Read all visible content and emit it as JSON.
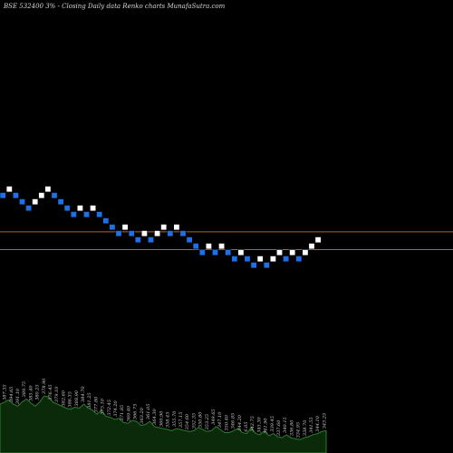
{
  "chart_data": {
    "type": "renko",
    "title": "BSE 532400  3% -  Closing Daily data  Renko  charts MunafaSutra.com",
    "colors": {
      "background": "#000000",
      "up_brick": "#ffffff",
      "down_brick": "#1e6fe8",
      "reference_line": "#b8651a",
      "volume_area": "#0a2a0a",
      "volume_line": "#2f7a2f"
    },
    "bricks": [
      {
        "dir": "down",
        "level": 0
      },
      {
        "dir": "up",
        "level": 1
      },
      {
        "dir": "down",
        "level": 0
      },
      {
        "dir": "down",
        "level": -1
      },
      {
        "dir": "down",
        "level": -2
      },
      {
        "dir": "up",
        "level": -1
      },
      {
        "dir": "up",
        "level": 0
      },
      {
        "dir": "up",
        "level": 1
      },
      {
        "dir": "down",
        "level": 0
      },
      {
        "dir": "down",
        "level": -1
      },
      {
        "dir": "down",
        "level": -2
      },
      {
        "dir": "down",
        "level": -3
      },
      {
        "dir": "up",
        "level": -2
      },
      {
        "dir": "down",
        "level": -3
      },
      {
        "dir": "up",
        "level": -2
      },
      {
        "dir": "down",
        "level": -3
      },
      {
        "dir": "down",
        "level": -4
      },
      {
        "dir": "down",
        "level": -5
      },
      {
        "dir": "down",
        "level": -6
      },
      {
        "dir": "up",
        "level": -5
      },
      {
        "dir": "down",
        "level": -6
      },
      {
        "dir": "down",
        "level": -7
      },
      {
        "dir": "up",
        "level": -6
      },
      {
        "dir": "down",
        "level": -7
      },
      {
        "dir": "up",
        "level": -6
      },
      {
        "dir": "up",
        "level": -5
      },
      {
        "dir": "down",
        "level": -6
      },
      {
        "dir": "up",
        "level": -5
      },
      {
        "dir": "down",
        "level": -6
      },
      {
        "dir": "down",
        "level": -7
      },
      {
        "dir": "down",
        "level": -8
      },
      {
        "dir": "down",
        "level": -9
      },
      {
        "dir": "up",
        "level": -8
      },
      {
        "dir": "down",
        "level": -9
      },
      {
        "dir": "up",
        "level": -8
      },
      {
        "dir": "down",
        "level": -9
      },
      {
        "dir": "down",
        "level": -10
      },
      {
        "dir": "up",
        "level": -9
      },
      {
        "dir": "down",
        "level": -10
      },
      {
        "dir": "down",
        "level": -11
      },
      {
        "dir": "up",
        "level": -10
      },
      {
        "dir": "down",
        "level": -11
      },
      {
        "dir": "up",
        "level": -10
      },
      {
        "dir": "up",
        "level": -9
      },
      {
        "dir": "down",
        "level": -10
      },
      {
        "dir": "up",
        "level": -9
      },
      {
        "dir": "down",
        "level": -10
      },
      {
        "dir": "up",
        "level": -9
      },
      {
        "dir": "up",
        "level": -8
      },
      {
        "dir": "up",
        "level": -7
      }
    ],
    "reference_lines": [
      -5.7,
      -8.5
    ],
    "volume": [
      48,
      50,
      52,
      48,
      46,
      50,
      53,
      49,
      46,
      50,
      56,
      55,
      50,
      48,
      46,
      44,
      43,
      45,
      44,
      48,
      44,
      42,
      38,
      42,
      36,
      35,
      33,
      34,
      30,
      29,
      32,
      31,
      27,
      28,
      31,
      26,
      25,
      24,
      23,
      22,
      24,
      23,
      22,
      21,
      22,
      25,
      23,
      21,
      22,
      26,
      23,
      20,
      20,
      22,
      24,
      20,
      19,
      25,
      19,
      18,
      22,
      17,
      19,
      16,
      15,
      18,
      15,
      14,
      13,
      15,
      16,
      18,
      19,
      21,
      22
    ],
    "volume_labels": [
      "387.35",
      "394.65",
      "391.10",
      "389.75",
      "385.40",
      "380.25",
      "378.90",
      "376.45",
      "379.10",
      "382.60",
      "386.35",
      "388.90",
      "384.70",
      "381.25",
      "377.80",
      "375.10",
      "372.45",
      "374.20",
      "371.85",
      "369.40",
      "366.75",
      "363.20",
      "361.05",
      "364.30",
      "360.90",
      "358.45",
      "355.70",
      "357.15",
      "354.60",
      "352.35",
      "350.80",
      "353.25",
      "349.65",
      "347.10",
      "350.40",
      "346.85",
      "344.20",
      "6.05",
      "342.75",
      "345.30",
      "341.90",
      "339.45",
      "337.60",
      "340.15",
      "336.80",
      "334.95",
      "338.70",
      "341.55",
      "344.10",
      "343.25"
    ]
  }
}
